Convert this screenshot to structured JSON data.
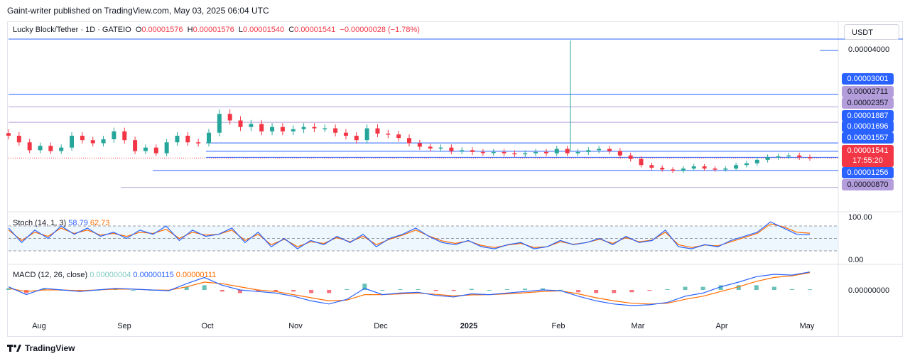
{
  "caption": "Gaint-writer published on TradingView.com, May 03, 2025 06:04 UTC",
  "legend": {
    "symbol": "Lucky Block/Tether · 1D · GATEIO",
    "o_label": "O",
    "o_value": "0.00001576",
    "h_label": "H",
    "h_value": "0.00001576",
    "l_label": "L",
    "l_value": "0.00001540",
    "c_label": "C",
    "c_value": "0.00001541",
    "change": "−0.00000028 (−1.78%)"
  },
  "currency_button": "USDT",
  "price_axis": {
    "top_label": "0.00004000",
    "labels": [
      {
        "text": "0.00003001",
        "color": "#2962ff",
        "kind": "blue"
      },
      {
        "text": "0.00002711",
        "color": "#b39ddb",
        "kind": "purple"
      },
      {
        "text": "0.00002357",
        "color": "#b39ddb",
        "kind": "purple"
      },
      {
        "text": "0.00001887",
        "color": "#2962ff",
        "kind": "blue"
      },
      {
        "text": "0.00001696",
        "color": "#2962ff",
        "kind": "blue"
      },
      {
        "text": "0.00001557",
        "color": "#2962ff",
        "kind": "blue"
      },
      {
        "text": "0.00001541",
        "color": "#f23645",
        "kind": "current"
      },
      {
        "text": "17:55:20",
        "color": "#f23645",
        "kind": "countdown"
      },
      {
        "text": "0.00001256",
        "color": "#2962ff",
        "kind": "blue"
      },
      {
        "text": "0.00000870",
        "color": "#b39ddb",
        "kind": "purple"
      }
    ]
  },
  "stoch": {
    "name": "Stoch (14, 1, 3)",
    "k": "58.79",
    "d": "62.73",
    "axis_top": "100.00",
    "axis_bottom": "0.00",
    "k_color": "#2962ff",
    "d_color": "#ff6d00"
  },
  "macd": {
    "name": "MACD (12, 26, close)",
    "hist": "0.00000004",
    "macd": "0.00000115",
    "signal": "0.00000111",
    "axis_zero": "0.00000000",
    "hist_color": "#26a69a",
    "macd_color": "#2962ff",
    "signal_color": "#ff6d00"
  },
  "x_axis": [
    "Aug",
    "Sep",
    "Oct",
    "Nov",
    "Dec",
    "2025",
    "Feb",
    "Mar",
    "Apr",
    "May"
  ],
  "brand": "TradingView",
  "colors": {
    "up": "#26a69a",
    "down": "#f23645",
    "line_blue": "#2962ff",
    "line_purple": "#b39ddb"
  },
  "chart_data": {
    "type": "candlestick",
    "symbol": "Lucky Block/Tether",
    "interval": "1D",
    "ohlc_last": {
      "open": 1.576e-05,
      "high": 1.576e-05,
      "low": 1.54e-05,
      "close": 1.541e-05
    },
    "horizontal_levels": [
      3.001e-05,
      2.711e-05,
      2.357e-05,
      1.887e-05,
      1.696e-05,
      1.557e-05,
      1.256e-05,
      8.7e-06
    ],
    "close_series_approx": [
      2.05e-05,
      1.9e-05,
      1.72e-05,
      1.82e-05,
      1.7e-05,
      1.78e-05,
      2.05e-05,
      1.95e-05,
      1.88e-05,
      1.97e-05,
      2.15e-05,
      1.95e-05,
      1.7e-05,
      1.78e-05,
      1.65e-05,
      1.9e-05,
      2.05e-05,
      1.9e-05,
      1.88e-05,
      2.12e-05,
      2.55e-05,
      2.4e-05,
      2.25e-05,
      2.32e-05,
      2.15e-05,
      2.25e-05,
      2.15e-05,
      2.2e-05,
      2.25e-05,
      2.22e-05,
      2.22e-05,
      2.12e-05,
      2.05e-05,
      1.95e-05,
      2.22e-05,
      2.1e-05,
      2.08e-05,
      2e-05,
      1.88e-05,
      1.8e-05,
      1.76e-05,
      1.78e-05,
      1.7e-05,
      1.72e-05,
      1.68e-05,
      1.66e-05,
      1.68e-05,
      1.65e-05,
      1.63e-05,
      1.65e-05,
      1.68e-05,
      1.65e-05,
      1.75e-05,
      1.65e-05,
      1.68e-05,
      1.72e-05,
      1.75e-05,
      1.7e-05,
      1.6e-05,
      1.52e-05,
      1.38e-05,
      1.32e-05,
      1.28e-05,
      1.25e-05,
      1.3e-05,
      1.35e-05,
      1.3e-05,
      1.28e-05,
      1.3e-05,
      1.38e-05,
      1.42e-05,
      1.5e-05,
      1.56e-05,
      1.58e-05,
      1.6e-05,
      1.56e-05,
      1.54e-05
    ],
    "stoch_k_approx": [
      75,
      40,
      70,
      50,
      80,
      60,
      75,
      55,
      65,
      50,
      70,
      60,
      80,
      45,
      70,
      55,
      60,
      75,
      40,
      65,
      30,
      50,
      25,
      45,
      35,
      55,
      40,
      60,
      30,
      50,
      60,
      75,
      55,
      40,
      35,
      45,
      30,
      25,
      35,
      40,
      25,
      30,
      45,
      35,
      40,
      50,
      35,
      55,
      40,
      45,
      70,
      30,
      25,
      35,
      30,
      45,
      55,
      65,
      90,
      75,
      60,
      58.79
    ],
    "stoch_d_approx": [
      70,
      45,
      65,
      55,
      75,
      62,
      70,
      58,
      62,
      55,
      65,
      62,
      72,
      50,
      65,
      58,
      60,
      70,
      45,
      60,
      35,
      48,
      30,
      42,
      38,
      52,
      42,
      55,
      35,
      48,
      58,
      70,
      56,
      44,
      38,
      44,
      33,
      28,
      34,
      38,
      28,
      30,
      42,
      36,
      40,
      48,
      38,
      52,
      42,
      46,
      65,
      35,
      28,
      34,
      32,
      42,
      52,
      62,
      85,
      78,
      65,
      62.73
    ],
    "macd_line_approx": [
      0.2,
      -0.3,
      0.1,
      0.0,
      -0.1,
      0.0,
      0.1,
      0.05,
      0.0,
      -0.05,
      0.4,
      0.8,
      0.3,
      0.0,
      -0.1,
      -0.2,
      -0.4,
      -0.7,
      -0.9,
      -0.6,
      0.1,
      -0.3,
      -0.2,
      -0.15,
      -0.35,
      -0.45,
      -0.25,
      -0.3,
      -0.2,
      -0.1,
      0.0,
      -0.05,
      -0.4,
      -0.7,
      -0.9,
      -1.0,
      -0.95,
      -0.8,
      -0.4,
      -0.2,
      0.2,
      0.5,
      0.85,
      1.0,
      0.95,
      1.15
    ],
    "signal_line_approx": [
      0.1,
      -0.1,
      0.0,
      0.0,
      -0.05,
      0.0,
      0.05,
      0.05,
      0.0,
      -0.02,
      0.2,
      0.5,
      0.4,
      0.2,
      0.0,
      -0.1,
      -0.3,
      -0.5,
      -0.7,
      -0.65,
      -0.3,
      -0.3,
      -0.25,
      -0.2,
      -0.28,
      -0.38,
      -0.32,
      -0.3,
      -0.25,
      -0.18,
      -0.1,
      -0.06,
      -0.25,
      -0.5,
      -0.7,
      -0.85,
      -0.9,
      -0.85,
      -0.6,
      -0.4,
      -0.1,
      0.2,
      0.55,
      0.8,
      0.9,
      1.11
    ]
  }
}
